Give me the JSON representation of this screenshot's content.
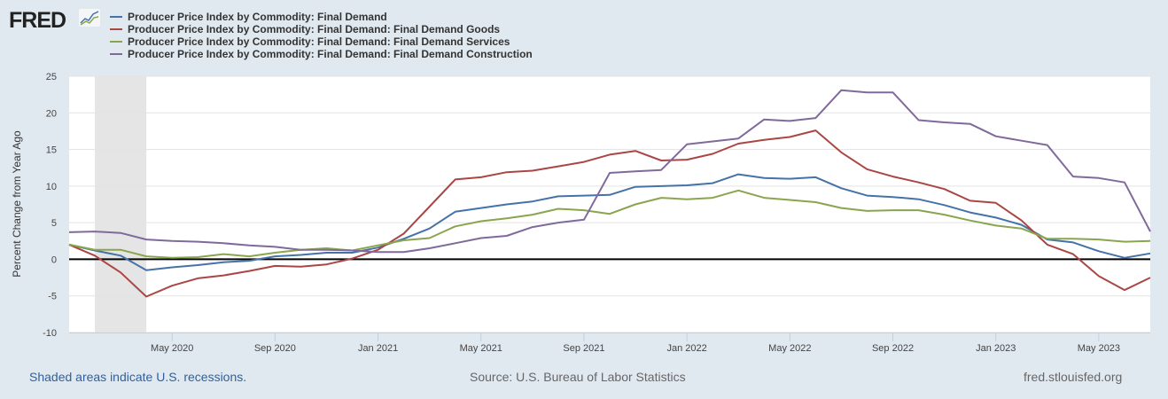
{
  "brand": {
    "logo": "FRED"
  },
  "footer": {
    "recession_note": "Shaded areas indicate U.S. recessions.",
    "source": "Source: U.S. Bureau of Labor Statistics",
    "site": "fred.stlouisfed.org"
  },
  "chart_data": {
    "type": "line",
    "title": "",
    "xlabel": "",
    "ylabel": "Percent Change from Year Ago",
    "ylim": [
      -10,
      25
    ],
    "yticks": [
      25,
      20,
      15,
      10,
      5,
      0,
      -5,
      -10
    ],
    "grid": true,
    "legend_position": "top-left",
    "x_start": "2020-01",
    "x": [
      "Jan 2020",
      "Feb 2020",
      "Mar 2020",
      "Apr 2020",
      "May 2020",
      "Jun 2020",
      "Jul 2020",
      "Aug 2020",
      "Sep 2020",
      "Oct 2020",
      "Nov 2020",
      "Dec 2020",
      "Jan 2021",
      "Feb 2021",
      "Mar 2021",
      "Apr 2021",
      "May 2021",
      "Jun 2021",
      "Jul 2021",
      "Aug 2021",
      "Sep 2021",
      "Oct 2021",
      "Nov 2021",
      "Dec 2021",
      "Jan 2022",
      "Feb 2022",
      "Mar 2022",
      "Apr 2022",
      "May 2022",
      "Jun 2022",
      "Jul 2022",
      "Aug 2022",
      "Sep 2022",
      "Oct 2022",
      "Nov 2022",
      "Dec 2022",
      "Jan 2023",
      "Feb 2023",
      "Mar 2023",
      "Apr 2023",
      "May 2023",
      "Jun 2023",
      "Jul 2023"
    ],
    "xticks": [
      {
        "index": 4,
        "label": "May 2020"
      },
      {
        "index": 8,
        "label": "Sep 2020"
      },
      {
        "index": 12,
        "label": "Jan 2021"
      },
      {
        "index": 16,
        "label": "May 2021"
      },
      {
        "index": 20,
        "label": "Sep 2021"
      },
      {
        "index": 24,
        "label": "Jan 2022"
      },
      {
        "index": 28,
        "label": "May 2022"
      },
      {
        "index": 32,
        "label": "Sep 2022"
      },
      {
        "index": 36,
        "label": "Jan 2023"
      },
      {
        "index": 40,
        "label": "May 2023"
      }
    ],
    "recessions": [
      {
        "start_index": 1,
        "end_index": 3,
        "label": "Feb 2020 - Apr 2020"
      }
    ],
    "series": [
      {
        "name": "Producer Price Index by Commodity: Final Demand",
        "color": "#4572a7",
        "values": [
          2.0,
          1.2,
          0.5,
          -1.5,
          -1.1,
          -0.8,
          -0.4,
          -0.2,
          0.4,
          0.6,
          0.9,
          0.9,
          1.6,
          2.8,
          4.2,
          6.5,
          7.0,
          7.5,
          7.9,
          8.6,
          8.7,
          8.8,
          9.9,
          10.0,
          10.1,
          10.4,
          11.6,
          11.1,
          11.0,
          11.2,
          9.7,
          8.7,
          8.5,
          8.2,
          7.4,
          6.4,
          5.7,
          4.7,
          2.7,
          2.3,
          1.1,
          0.2,
          0.8
        ]
      },
      {
        "name": "Producer Price Index by Commodity: Final Demand: Final Demand Goods",
        "color": "#aa4643",
        "values": [
          2.0,
          0.5,
          -1.8,
          -5.1,
          -3.6,
          -2.6,
          -2.2,
          -1.6,
          -0.9,
          -1.0,
          -0.7,
          0.1,
          1.3,
          3.5,
          7.2,
          10.9,
          11.2,
          11.9,
          12.1,
          12.7,
          13.3,
          14.3,
          14.8,
          13.5,
          13.6,
          14.4,
          15.8,
          16.3,
          16.7,
          17.6,
          14.6,
          12.3,
          11.3,
          10.5,
          9.6,
          8.0,
          7.7,
          5.3,
          2.0,
          0.7,
          -2.3,
          -4.2,
          -2.5
        ]
      },
      {
        "name": "Producer Price Index by Commodity: Final Demand: Final Demand Services",
        "color": "#89a54e",
        "values": [
          2.0,
          1.3,
          1.3,
          0.4,
          0.2,
          0.3,
          0.7,
          0.4,
          0.9,
          1.3,
          1.5,
          1.2,
          1.9,
          2.6,
          2.9,
          4.5,
          5.2,
          5.6,
          6.1,
          6.9,
          6.7,
          6.2,
          7.5,
          8.4,
          8.2,
          8.4,
          9.4,
          8.4,
          8.1,
          7.8,
          7.0,
          6.6,
          6.7,
          6.7,
          6.1,
          5.3,
          4.6,
          4.2,
          2.8,
          2.8,
          2.7,
          2.4,
          2.5
        ]
      },
      {
        "name": "Producer Price Index by Commodity: Final Demand: Final Demand Construction",
        "color": "#80699b",
        "values": [
          3.7,
          3.8,
          3.6,
          2.7,
          2.5,
          2.4,
          2.2,
          1.9,
          1.7,
          1.3,
          1.3,
          1.2,
          1.0,
          1.0,
          1.5,
          2.2,
          2.9,
          3.2,
          4.4,
          5.0,
          5.4,
          11.8,
          12.0,
          12.2,
          15.7,
          16.1,
          16.5,
          19.1,
          18.9,
          19.3,
          23.1,
          22.8,
          22.8,
          19.0,
          18.7,
          18.5,
          16.8,
          16.2,
          15.6,
          11.3,
          11.1,
          10.5,
          3.8
        ]
      }
    ]
  }
}
